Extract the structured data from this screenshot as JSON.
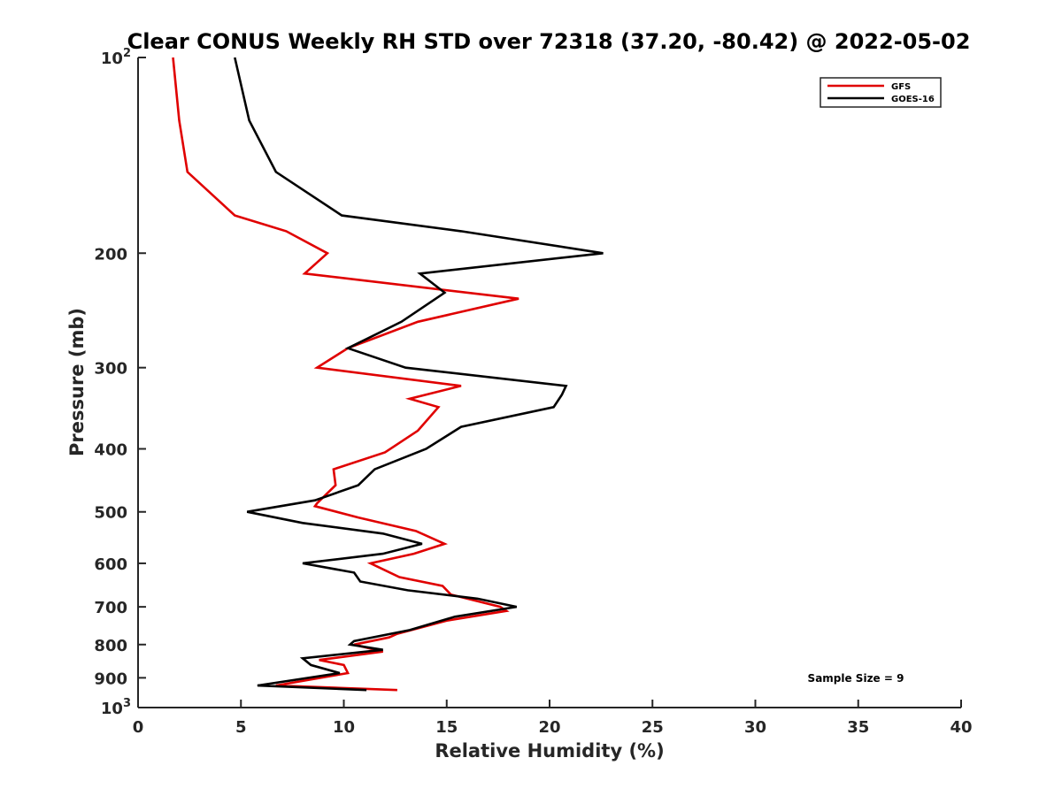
{
  "chart_data": {
    "type": "line",
    "title": "Clear CONUS Weekly RH STD over 72318 (37.20, -80.42) @ 2022-05-02",
    "xlabel": "Relative Humidity (%)",
    "ylabel": "Pressure (mb)",
    "xlim": [
      0,
      40
    ],
    "ylim": [
      100,
      1000
    ],
    "y_scale": "log",
    "y_reversed": true,
    "grid": false,
    "legend_position": "top-right",
    "x_ticks": [
      "0",
      "5",
      "10",
      "15",
      "20",
      "25",
      "30",
      "35",
      "40"
    ],
    "y_ticks": [
      {
        "value": 100,
        "base": "10",
        "exp": "2"
      },
      {
        "value": 200,
        "label": "200"
      },
      {
        "value": 300,
        "label": "300"
      },
      {
        "value": 400,
        "label": "400"
      },
      {
        "value": 500,
        "label": "500"
      },
      {
        "value": 600,
        "label": "600"
      },
      {
        "value": 700,
        "label": "700"
      },
      {
        "value": 800,
        "label": "800"
      },
      {
        "value": 900,
        "label": "900"
      },
      {
        "value": 1000,
        "base": "10",
        "exp": "3"
      }
    ],
    "annotation": "Sample Size = 9",
    "series": [
      {
        "name": "GFS",
        "color": "#e00000",
        "points": [
          [
            1.7,
            100
          ],
          [
            2.0,
            125
          ],
          [
            2.4,
            150
          ],
          [
            4.7,
            175
          ],
          [
            7.2,
            185
          ],
          [
            9.2,
            200
          ],
          [
            8.1,
            215
          ],
          [
            18.5,
            235
          ],
          [
            13.6,
            255
          ],
          [
            10.2,
            280
          ],
          [
            8.7,
            300
          ],
          [
            15.7,
            320
          ],
          [
            13.2,
            335
          ],
          [
            14.6,
            345
          ],
          [
            13.6,
            375
          ],
          [
            12.0,
            405
          ],
          [
            9.5,
            430
          ],
          [
            9.6,
            455
          ],
          [
            8.7,
            485
          ],
          [
            8.6,
            490
          ],
          [
            10.7,
            510
          ],
          [
            13.5,
            535
          ],
          [
            14.9,
            560
          ],
          [
            13.4,
            580
          ],
          [
            11.3,
            600
          ],
          [
            12.7,
            630
          ],
          [
            14.8,
            650
          ],
          [
            15.2,
            670
          ],
          [
            17.6,
            700
          ],
          [
            17.9,
            710
          ],
          [
            15.0,
            735
          ],
          [
            12.6,
            770
          ],
          [
            12.2,
            780
          ],
          [
            10.5,
            800
          ],
          [
            11.9,
            820
          ],
          [
            8.8,
            845
          ],
          [
            10.0,
            860
          ],
          [
            10.2,
            885
          ],
          [
            6.7,
            925
          ],
          [
            12.6,
            940
          ]
        ]
      },
      {
        "name": "GOES-16",
        "color": "#000000",
        "points": [
          [
            4.7,
            100
          ],
          [
            5.4,
            125
          ],
          [
            6.7,
            150
          ],
          [
            9.9,
            175
          ],
          [
            15.7,
            185
          ],
          [
            22.6,
            200
          ],
          [
            13.7,
            215
          ],
          [
            14.9,
            230
          ],
          [
            12.8,
            255
          ],
          [
            10.2,
            280
          ],
          [
            13.0,
            300
          ],
          [
            20.8,
            320
          ],
          [
            20.6,
            330
          ],
          [
            20.2,
            345
          ],
          [
            15.7,
            370
          ],
          [
            14.0,
            400
          ],
          [
            11.5,
            430
          ],
          [
            10.7,
            455
          ],
          [
            8.6,
            480
          ],
          [
            5.3,
            500
          ],
          [
            8.0,
            520
          ],
          [
            11.9,
            540
          ],
          [
            13.8,
            560
          ],
          [
            11.9,
            580
          ],
          [
            8.0,
            600
          ],
          [
            10.5,
            620
          ],
          [
            10.8,
            640
          ],
          [
            13.1,
            660
          ],
          [
            16.5,
            680
          ],
          [
            18.4,
            700
          ],
          [
            15.4,
            725
          ],
          [
            13.2,
            760
          ],
          [
            10.5,
            790
          ],
          [
            10.3,
            800
          ],
          [
            11.9,
            815
          ],
          [
            8.0,
            840
          ],
          [
            8.4,
            860
          ],
          [
            9.8,
            885
          ],
          [
            5.8,
            925
          ],
          [
            11.1,
            940
          ]
        ]
      }
    ]
  }
}
